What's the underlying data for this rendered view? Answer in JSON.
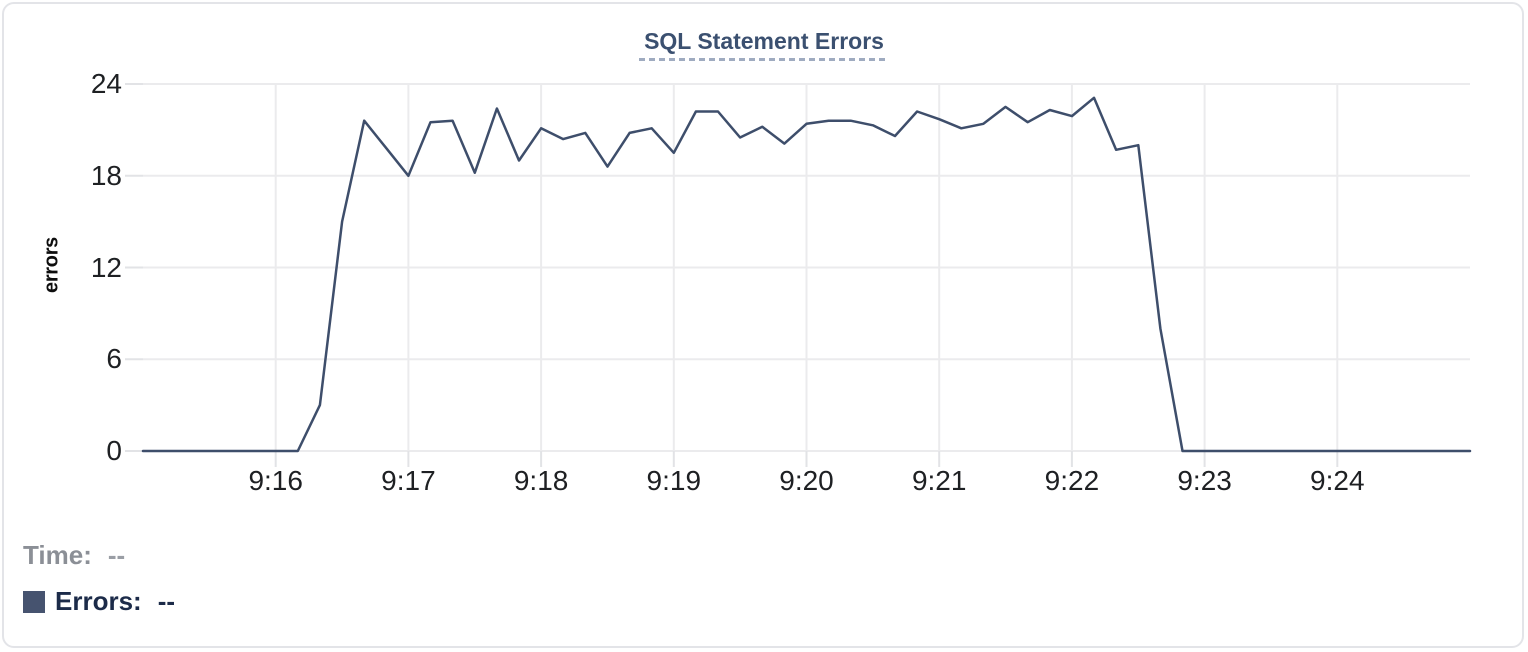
{
  "card": {
    "title": "SQL Statement Errors"
  },
  "colors": {
    "background": "#ffffff",
    "card_border": "#e3e4e8",
    "title": "#3b5070",
    "title_underline": "#9fabc0",
    "grid": "#ebebed",
    "tick": "#e2e3e6",
    "tick_label": "#1e2023",
    "axis_title": "#0e0e0e",
    "series_line": "#3e4e6b",
    "legend_swatch": "#46536f",
    "time_label": "#8b8f96",
    "errors_label": "#1c2b49"
  },
  "readout": {
    "time_label": "Time:",
    "time_value": "--",
    "errors_label": "Errors:",
    "errors_value": "--"
  },
  "chart_data": {
    "type": "line",
    "title": "SQL Statement Errors",
    "xlabel": "",
    "ylabel": "errors",
    "ylim": [
      0,
      24
    ],
    "y_ticks": [
      0,
      6,
      12,
      18,
      24
    ],
    "x_tick_labels": [
      "9:16",
      "9:17",
      "9:18",
      "9:19",
      "9:20",
      "9:21",
      "9:22",
      "9:23",
      "9:24"
    ],
    "x_interval_seconds": 10,
    "grid": true,
    "legend_position": "bottom-left",
    "series": [
      {
        "name": "Errors",
        "color": "#3e4e6b",
        "points": [
          {
            "t": "9:15:00",
            "v": 0
          },
          {
            "t": "9:15:10",
            "v": 0
          },
          {
            "t": "9:15:20",
            "v": 0
          },
          {
            "t": "9:15:30",
            "v": 0
          },
          {
            "t": "9:15:40",
            "v": 0
          },
          {
            "t": "9:15:50",
            "v": 0
          },
          {
            "t": "9:16:00",
            "v": 0
          },
          {
            "t": "9:16:10",
            "v": 0
          },
          {
            "t": "9:16:20",
            "v": 3
          },
          {
            "t": "9:16:30",
            "v": 15
          },
          {
            "t": "9:16:40",
            "v": 21.6
          },
          {
            "t": "9:16:50",
            "v": 19.8
          },
          {
            "t": "9:17:00",
            "v": 18
          },
          {
            "t": "9:17:10",
            "v": 21.5
          },
          {
            "t": "9:17:20",
            "v": 21.6
          },
          {
            "t": "9:17:30",
            "v": 18.2
          },
          {
            "t": "9:17:40",
            "v": 22.4
          },
          {
            "t": "9:17:50",
            "v": 19
          },
          {
            "t": "9:18:00",
            "v": 21.1
          },
          {
            "t": "9:18:10",
            "v": 20.4
          },
          {
            "t": "9:18:20",
            "v": 20.8
          },
          {
            "t": "9:18:30",
            "v": 18.6
          },
          {
            "t": "9:18:40",
            "v": 20.8
          },
          {
            "t": "9:18:50",
            "v": 21.1
          },
          {
            "t": "9:19:00",
            "v": 19.5
          },
          {
            "t": "9:19:10",
            "v": 22.2
          },
          {
            "t": "9:19:20",
            "v": 22.2
          },
          {
            "t": "9:19:30",
            "v": 20.5
          },
          {
            "t": "9:19:40",
            "v": 21.2
          },
          {
            "t": "9:19:50",
            "v": 20.1
          },
          {
            "t": "9:20:00",
            "v": 21.4
          },
          {
            "t": "9:20:10",
            "v": 21.6
          },
          {
            "t": "9:20:20",
            "v": 21.6
          },
          {
            "t": "9:20:30",
            "v": 21.3
          },
          {
            "t": "9:20:40",
            "v": 20.6
          },
          {
            "t": "9:20:50",
            "v": 22.2
          },
          {
            "t": "9:21:00",
            "v": 21.7
          },
          {
            "t": "9:21:10",
            "v": 21.1
          },
          {
            "t": "9:21:20",
            "v": 21.4
          },
          {
            "t": "9:21:30",
            "v": 22.5
          },
          {
            "t": "9:21:40",
            "v": 21.5
          },
          {
            "t": "9:21:50",
            "v": 22.3
          },
          {
            "t": "9:22:00",
            "v": 21.9
          },
          {
            "t": "9:22:10",
            "v": 23.1
          },
          {
            "t": "9:22:20",
            "v": 19.7
          },
          {
            "t": "9:22:30",
            "v": 20
          },
          {
            "t": "9:22:40",
            "v": 8
          },
          {
            "t": "9:22:50",
            "v": 0
          },
          {
            "t": "9:23:00",
            "v": 0
          },
          {
            "t": "9:23:10",
            "v": 0
          },
          {
            "t": "9:23:20",
            "v": 0
          },
          {
            "t": "9:23:30",
            "v": 0
          },
          {
            "t": "9:23:40",
            "v": 0
          },
          {
            "t": "9:23:50",
            "v": 0
          },
          {
            "t": "9:24:00",
            "v": 0
          },
          {
            "t": "9:24:10",
            "v": 0
          },
          {
            "t": "9:24:20",
            "v": 0
          },
          {
            "t": "9:24:30",
            "v": 0
          },
          {
            "t": "9:24:40",
            "v": 0
          },
          {
            "t": "9:24:50",
            "v": 0
          },
          {
            "t": "9:25:00",
            "v": 0
          }
        ]
      }
    ]
  }
}
